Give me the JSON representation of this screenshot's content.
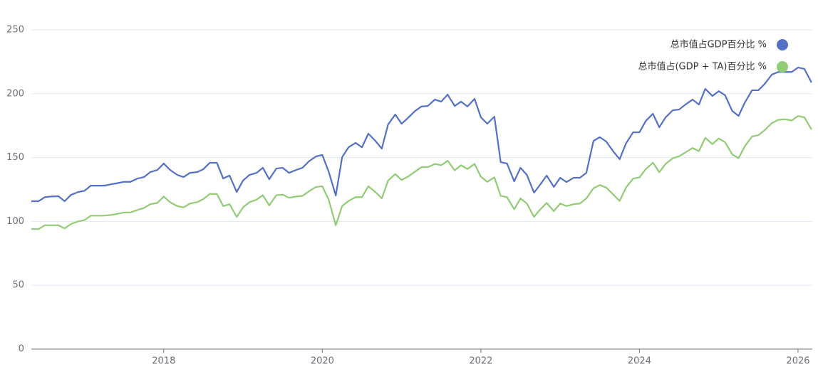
{
  "chart_data": {
    "type": "line",
    "x": [
      2016.33,
      2016.42,
      2016.5,
      2016.58,
      2016.67,
      2016.75,
      2016.83,
      2016.92,
      2017.0,
      2017.08,
      2017.17,
      2017.25,
      2017.33,
      2017.42,
      2017.5,
      2017.58,
      2017.67,
      2017.75,
      2017.83,
      2017.92,
      2018.0,
      2018.08,
      2018.17,
      2018.25,
      2018.33,
      2018.42,
      2018.5,
      2018.58,
      2018.67,
      2018.75,
      2018.83,
      2018.92,
      2019.0,
      2019.08,
      2019.17,
      2019.25,
      2019.33,
      2019.42,
      2019.5,
      2019.58,
      2019.67,
      2019.75,
      2019.83,
      2019.92,
      2020.0,
      2020.08,
      2020.17,
      2020.25,
      2020.33,
      2020.42,
      2020.5,
      2020.58,
      2020.67,
      2020.75,
      2020.83,
      2020.92,
      2021.0,
      2021.08,
      2021.17,
      2021.25,
      2021.33,
      2021.42,
      2021.5,
      2021.58,
      2021.67,
      2021.75,
      2021.83,
      2021.92,
      2022.0,
      2022.08,
      2022.17,
      2022.25,
      2022.33,
      2022.42,
      2022.5,
      2022.58,
      2022.67,
      2022.75,
      2022.83,
      2022.92,
      2023.0,
      2023.08,
      2023.17,
      2023.25,
      2023.33,
      2023.42,
      2023.5,
      2023.58,
      2023.67,
      2023.75,
      2023.83,
      2023.92,
      2024.0,
      2024.08,
      2024.17,
      2024.25,
      2024.33,
      2024.42,
      2024.5,
      2024.58,
      2024.67,
      2024.75,
      2024.83,
      2024.92,
      2025.0,
      2025.08,
      2025.17,
      2025.25,
      2025.33,
      2025.42,
      2025.5,
      2025.58,
      2025.67,
      2025.75,
      2025.83,
      2025.92,
      2026.0,
      2026.08,
      2026.17
    ],
    "series": [
      {
        "name": "总市值占GDP百分比 %",
        "color": "#5470c6",
        "values": [
          115.8,
          115.8,
          119,
          119.5,
          119.7,
          115.8,
          120.8,
          123,
          124,
          128,
          128,
          128,
          129,
          130,
          131,
          131,
          133.6,
          134.7,
          138.6,
          140.3,
          145.3,
          140.3,
          136.4,
          134.7,
          138,
          138.6,
          140.9,
          145.9,
          145.9,
          133.6,
          135.9,
          123,
          132,
          136.4,
          138,
          142,
          133,
          141.4,
          142,
          138,
          140.3,
          142,
          147,
          150.9,
          152,
          139,
          120.3,
          150.3,
          158,
          161.5,
          158,
          168.7,
          163,
          157,
          176,
          183.7,
          176.5,
          181,
          186.5,
          190,
          190.4,
          195.4,
          193.8,
          199.3,
          190.4,
          193.8,
          190,
          196,
          181.5,
          176.5,
          182,
          146.4,
          145.3,
          131.4,
          142,
          136.4,
          122.5,
          129,
          135.9,
          127,
          134.2,
          130.8,
          134.2,
          134.2,
          138,
          163,
          166,
          162.6,
          154.8,
          148.7,
          161,
          169.8,
          169.8,
          178.7,
          184.3,
          173.7,
          181.5,
          187,
          187.6,
          191.5,
          195.4,
          191.5,
          203.8,
          198.2,
          202,
          198.8,
          186.5,
          182.6,
          193.2,
          202.7,
          202.7,
          207.7,
          215,
          217,
          217,
          217,
          220.5,
          219.4,
          208.8
        ]
      },
      {
        "name": "总市值占(GDP + TA)百分比 %",
        "color": "#91cc75",
        "values": [
          94,
          94,
          97,
          97,
          97,
          94.5,
          98,
          100,
          101,
          104.5,
          104.5,
          104.5,
          105,
          106,
          107,
          107,
          109,
          110.5,
          113.5,
          114.5,
          119.5,
          115,
          112,
          111,
          114,
          115,
          117.5,
          121.5,
          121.5,
          112,
          113.5,
          103.5,
          111,
          115,
          117,
          120.5,
          112.5,
          120.5,
          121,
          118.5,
          119.5,
          120,
          123.5,
          127,
          127.5,
          117,
          97,
          112,
          116,
          119,
          119,
          127.5,
          123,
          118,
          132,
          137,
          132.5,
          135,
          139,
          142.5,
          142.5,
          145,
          144,
          147.5,
          140,
          144,
          141,
          145,
          135,
          131,
          134.5,
          120,
          119,
          109.5,
          118,
          114,
          103.5,
          109.5,
          114.5,
          108,
          114,
          112,
          113.5,
          114,
          118,
          126,
          128.5,
          126.5,
          121,
          116,
          126.5,
          133.5,
          134.5,
          141,
          146,
          138.5,
          145,
          149.5,
          151,
          154,
          157.5,
          155,
          165.5,
          160.5,
          165,
          162,
          152.5,
          149.5,
          159,
          166.5,
          167.5,
          171.5,
          177,
          179.5,
          180,
          179,
          182.5,
          181.5,
          172
        ]
      }
    ],
    "xlim": [
      2016.33,
      2026.18
    ],
    "xticks": [
      2018,
      2020,
      2022,
      2024,
      2026
    ],
    "ylim": [
      0,
      250
    ],
    "yticks": [
      0,
      50,
      100,
      150,
      200,
      250
    ],
    "grid": true,
    "legend": "top-right"
  }
}
